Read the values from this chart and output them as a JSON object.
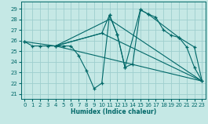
{
  "xlabel": "Humidex (Indice chaleur)",
  "xlim": [
    -0.5,
    23.5
  ],
  "ylim": [
    20.5,
    29.7
  ],
  "xticks": [
    0,
    1,
    2,
    3,
    4,
    5,
    6,
    7,
    8,
    9,
    10,
    11,
    12,
    13,
    14,
    15,
    16,
    17,
    18,
    19,
    20,
    21,
    22,
    23
  ],
  "yticks": [
    21,
    22,
    23,
    24,
    25,
    26,
    27,
    28,
    29
  ],
  "bg_color": "#c5e8e5",
  "grid_color": "#9ecece",
  "line_color": "#006868",
  "line1_x": [
    0,
    1,
    2,
    3,
    4,
    5,
    6,
    7,
    8,
    9,
    10,
    11,
    12,
    13,
    14,
    15,
    16,
    17,
    18,
    19,
    20,
    21,
    22,
    23
  ],
  "line1_y": [
    25.9,
    25.5,
    25.5,
    25.5,
    25.5,
    25.5,
    25.5,
    24.6,
    23.2,
    21.5,
    22.0,
    28.4,
    26.6,
    23.5,
    23.8,
    28.9,
    28.5,
    28.2,
    27.0,
    26.5,
    26.3,
    25.4,
    23.5,
    22.2
  ],
  "line2_x": [
    0,
    4,
    10,
    11,
    12,
    13,
    15,
    16,
    20,
    22,
    23
  ],
  "line2_y": [
    25.9,
    25.5,
    26.7,
    28.4,
    26.6,
    23.5,
    28.9,
    28.5,
    26.3,
    25.4,
    22.2
  ],
  "line3_x": [
    4,
    23
  ],
  "line3_y": [
    25.5,
    22.2
  ],
  "line4_x": [
    4,
    10,
    23
  ],
  "line4_y": [
    25.5,
    26.7,
    22.2
  ],
  "line5_x": [
    4,
    11,
    23
  ],
  "line5_y": [
    25.5,
    28.0,
    22.2
  ]
}
